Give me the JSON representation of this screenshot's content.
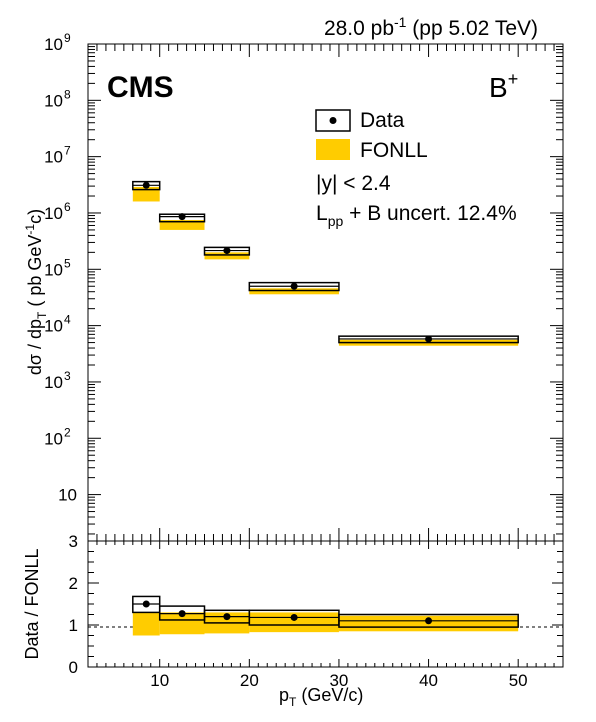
{
  "header": {
    "lumi_value": "28.0 pb",
    "lumi_exp": "-1",
    "lumi_rest": " (pp 5.02 TeV)"
  },
  "labels": {
    "experiment": "CMS",
    "particle": "B",
    "particle_sup": "+",
    "legend_data": "Data",
    "legend_fonll": "FONLL",
    "cut": "|y| < 2.4",
    "lumi_uncert_pre": "L",
    "lumi_uncert_sub": "pp",
    "lumi_uncert_post": " + B uncert. 12.4%"
  },
  "colors": {
    "fonll": "#ffcc00",
    "data": "#000000"
  },
  "chart_data": [
    {
      "type": "scatter",
      "panel": "cross-section",
      "ylabel": "dσ / dp_T ( pb GeV^-1c)",
      "yscale": "log",
      "ylim": [
        1.5,
        1000000000
      ],
      "xlim": [
        2,
        55
      ],
      "grid": false,
      "legend_position": "top-right",
      "ytick_labels": [
        {
          "v": 10,
          "label": "10",
          "exp": ""
        },
        {
          "v": 100,
          "label": "10",
          "exp": "2"
        },
        {
          "v": 1000,
          "label": "10",
          "exp": "3"
        },
        {
          "v": 10000,
          "label": "10",
          "exp": "4"
        },
        {
          "v": 100000,
          "label": "10",
          "exp": "5"
        },
        {
          "v": 1000000,
          "label": "10",
          "exp": "6"
        },
        {
          "v": 10000000,
          "label": "10",
          "exp": "7"
        },
        {
          "v": 100000000,
          "label": "10",
          "exp": "8"
        },
        {
          "v": 1000000000,
          "label": "10",
          "exp": "9"
        }
      ],
      "bins": [
        {
          "xlo": 7,
          "xhi": 10,
          "x": 8.5,
          "y": 3100000,
          "fonll_lo": 1600000,
          "fonll_hi": 2900000,
          "syst_lo": 2600000,
          "syst_hi": 3600000
        },
        {
          "xlo": 10,
          "xhi": 15,
          "x": 12.5,
          "y": 860000,
          "fonll_lo": 500000,
          "fonll_hi": 750000,
          "syst_lo": 700000,
          "syst_hi": 950000
        },
        {
          "xlo": 15,
          "xhi": 20,
          "x": 17.5,
          "y": 215000,
          "fonll_lo": 150000,
          "fonll_hi": 200000,
          "syst_lo": 180000,
          "syst_hi": 245000
        },
        {
          "xlo": 20,
          "xhi": 30,
          "x": 25,
          "y": 50000,
          "fonll_lo": 36000,
          "fonll_hi": 46000,
          "syst_lo": 42000,
          "syst_hi": 58000
        },
        {
          "xlo": 30,
          "xhi": 50,
          "x": 40,
          "y": 5800,
          "fonll_lo": 4400,
          "fonll_hi": 5600,
          "syst_lo": 5000,
          "syst_hi": 6500
        }
      ]
    },
    {
      "type": "scatter",
      "panel": "ratio",
      "xlabel": "p_T (GeV/c)",
      "ylabel": "Data / FONLL",
      "ylim": [
        0,
        3
      ],
      "xlim": [
        2,
        55
      ],
      "reference_line": 1,
      "xtick_labels": [
        "10",
        "20",
        "30",
        "40",
        "50"
      ],
      "xtick_values": [
        10,
        20,
        30,
        40,
        50
      ],
      "ytick_labels": [
        "0",
        "1",
        "2",
        "3"
      ],
      "ytick_values": [
        0,
        1,
        2,
        3
      ],
      "bins": [
        {
          "xlo": 7,
          "xhi": 10,
          "x": 8.5,
          "y": 1.5,
          "fonll_lo": 0.75,
          "fonll_hi": 1.3,
          "syst_lo": 1.3,
          "syst_hi": 1.68
        },
        {
          "xlo": 10,
          "xhi": 15,
          "x": 12.5,
          "y": 1.27,
          "fonll_lo": 0.78,
          "fonll_hi": 1.3,
          "syst_lo": 1.12,
          "syst_hi": 1.45
        },
        {
          "xlo": 15,
          "xhi": 20,
          "x": 17.5,
          "y": 1.2,
          "fonll_lo": 0.8,
          "fonll_hi": 1.3,
          "syst_lo": 1.05,
          "syst_hi": 1.35
        },
        {
          "xlo": 20,
          "xhi": 30,
          "x": 25,
          "y": 1.18,
          "fonll_lo": 0.83,
          "fonll_hi": 1.3,
          "syst_lo": 1.0,
          "syst_hi": 1.35
        },
        {
          "xlo": 30,
          "xhi": 50,
          "x": 40,
          "y": 1.1,
          "fonll_lo": 0.85,
          "fonll_hi": 1.22,
          "syst_lo": 0.95,
          "syst_hi": 1.25
        }
      ]
    }
  ]
}
